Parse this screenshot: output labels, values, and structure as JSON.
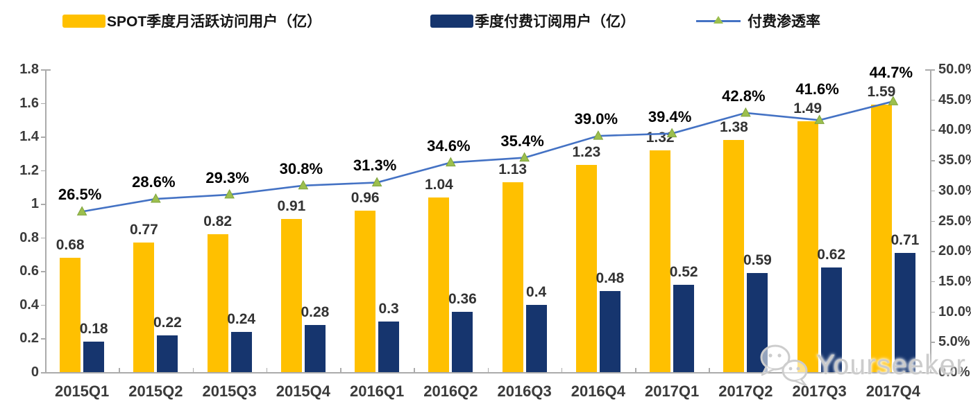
{
  "legend": {
    "items": [
      {
        "label": "SPOT季度月活跃访问用户（亿）"
      },
      {
        "label": "季度付费订阅用户（亿）"
      },
      {
        "label": "付费渗透率"
      }
    ]
  },
  "colors": {
    "bar_mau": "#FFC000",
    "bar_sub": "#16356E",
    "line": "#4472C4",
    "marker_fill": "#9CBF4E",
    "marker_stroke": "#7FA33C",
    "axis": "#ABABAB",
    "value_label": "#333333",
    "pct_label": "#000000",
    "watermark": "#C9C9C9"
  },
  "chart_data": {
    "type": "bar",
    "subtype": "clustered-bars-with-line",
    "categories": [
      "2015Q1",
      "2015Q2",
      "2015Q3",
      "2015Q4",
      "2016Q1",
      "2016Q2",
      "2016Q3",
      "2016Q4",
      "2017Q1",
      "2017Q2",
      "2017Q3",
      "2017Q4"
    ],
    "series": [
      {
        "name": "SPOT季度月活跃访问用户（亿）",
        "type": "bar",
        "axis": "left",
        "values": [
          0.68,
          0.77,
          0.82,
          0.91,
          0.96,
          1.04,
          1.13,
          1.23,
          1.32,
          1.38,
          1.49,
          1.59
        ]
      },
      {
        "name": "季度付费订阅用户（亿）",
        "type": "bar",
        "axis": "left",
        "values": [
          0.18,
          0.22,
          0.24,
          0.28,
          0.3,
          0.36,
          0.4,
          0.48,
          0.52,
          0.59,
          0.62,
          0.71
        ]
      },
      {
        "name": "付费渗透率",
        "type": "line",
        "axis": "right",
        "values": [
          26.5,
          28.6,
          29.3,
          30.8,
          31.3,
          34.6,
          35.4,
          39.0,
          39.4,
          42.8,
          41.6,
          44.7
        ]
      }
    ],
    "left_axis": {
      "min": 0,
      "max": 1.8,
      "ticks": [
        "0",
        "0.2",
        "0.4",
        "0.6",
        "0.8",
        "1",
        "1.2",
        "1.4",
        "1.6",
        "1.8"
      ]
    },
    "right_axis": {
      "min": 0,
      "max": 50,
      "ticks": [
        "0.0%",
        "5.0%",
        "10.0%",
        "15.0%",
        "20.0%",
        "25.0%",
        "30.0%",
        "35.0%",
        "40.0%",
        "45.0%",
        "50.0%"
      ]
    },
    "legend_position": "top",
    "grid": false
  },
  "value_labels": {
    "mau": [
      "0.68",
      "0.77",
      "0.82",
      "0.91",
      "0.96",
      "1.04",
      "1.13",
      "1.23",
      "1.32",
      "1.38",
      "1.49",
      "1.59"
    ],
    "sub": [
      "0.18",
      "0.22",
      "0.24",
      "0.28",
      "0.3",
      "0.36",
      "0.4",
      "0.48",
      "0.52",
      "0.59",
      "0.62",
      "0.71"
    ],
    "pct": [
      "26.5%",
      "28.6%",
      "29.3%",
      "30.8%",
      "31.3%",
      "34.6%",
      "35.4%",
      "39.0%",
      "39.4%",
      "42.8%",
      "41.6%",
      "44.7%"
    ]
  },
  "watermark": {
    "text": "Yourseeker"
  }
}
